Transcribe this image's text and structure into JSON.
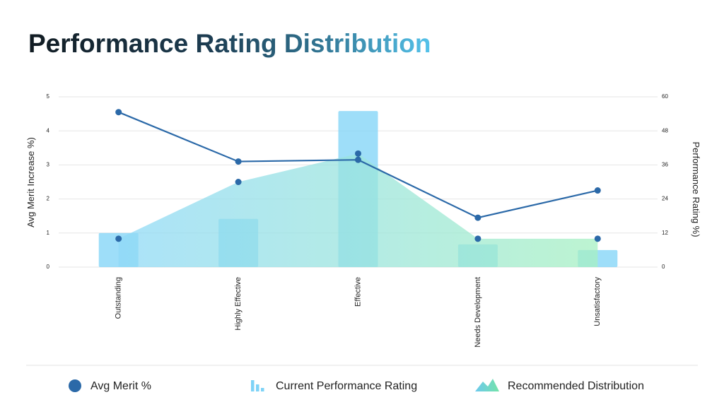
{
  "chart_data": {
    "type": "combo",
    "title": "Performance Rating Distribution",
    "categories": [
      "Outstanding",
      "Highly Effective",
      "Effective",
      "Needs Development",
      "Unsatisfactory"
    ],
    "ylabel": "Avg Merit Increase %)",
    "y2label": "Performance Rating %)",
    "ylim": [
      0,
      5
    ],
    "yticks": [
      0,
      1,
      2,
      3,
      4,
      5
    ],
    "y2lim": [
      0,
      60
    ],
    "y2ticks": [
      0,
      12,
      24,
      36,
      48,
      60
    ],
    "grid": true,
    "series": [
      {
        "name": "Avg Merit %",
        "type": "line",
        "axis": "y",
        "color": "#2b69a8",
        "values": [
          4.55,
          3.1,
          3.15,
          1.45,
          2.25
        ]
      },
      {
        "name": "Current Performance Rating",
        "type": "bar",
        "axis": "y2",
        "color": "#7ed3f7",
        "values": [
          12,
          17,
          55,
          8,
          6
        ]
      },
      {
        "name": "Recommended Distribution",
        "type": "area",
        "axis": "y2",
        "color": "#9ef0c4",
        "values": [
          10,
          30,
          40,
          10,
          10
        ]
      }
    ]
  }
}
